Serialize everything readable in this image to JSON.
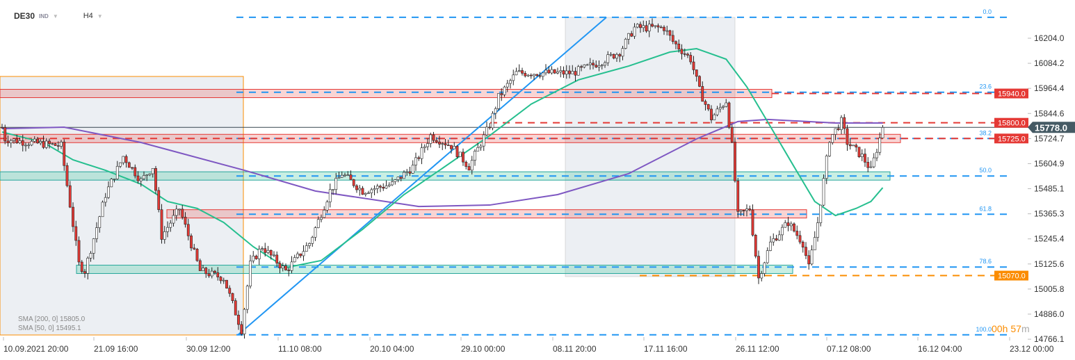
{
  "header": {
    "symbol": "DE30",
    "type": "IND",
    "timeframe": "H4"
  },
  "legend": [
    {
      "text": "SMA  [200,  0] 15805.0",
      "color": "#7e57c2"
    },
    {
      "text": "SMA  [50,  0] 15495.1",
      "color": "#26bf8f"
    }
  ],
  "timer": {
    "hours": "00h",
    "minutes": "57",
    "unit": "m"
  },
  "chart_data": {
    "type": "candlestick",
    "symbol": "DE30",
    "timeframe": "H4",
    "ylim": [
      14766.1,
      16204.0
    ],
    "y_ticks": [
      "16204.0",
      "16084.2",
      "15964.4",
      "15844.6",
      "15724.7",
      "15604.9",
      "15485.1",
      "15365.3",
      "15245.4",
      "15125.6",
      "15005.8",
      "14886.0",
      "14766.1"
    ],
    "x_ticks": [
      "10.09.2021  20:00",
      "21.09  16:00",
      "30.09  12:00",
      "11.10  08:00",
      "20.10  04:00",
      "29.10  00:00",
      "08.11  20:00",
      "17.11  16:00",
      "26.11  12:00",
      "07.12  08:00",
      "16.12  04:00",
      "23.12  00:00"
    ],
    "last_price": "15778.0",
    "price_path": [
      [
        1,
        15723
      ],
      [
        9,
        15706
      ],
      [
        20,
        15690
      ],
      [
        26,
        15125
      ],
      [
        28,
        15092
      ],
      [
        35,
        15457
      ],
      [
        41,
        15640
      ],
      [
        47,
        15523
      ],
      [
        51,
        15590
      ],
      [
        54,
        15258
      ],
      [
        60,
        15390
      ],
      [
        67,
        15092
      ],
      [
        75,
        15058
      ],
      [
        81,
        14810
      ],
      [
        84,
        15125
      ],
      [
        88,
        15208
      ],
      [
        96,
        15092
      ],
      [
        104,
        15225
      ],
      [
        111,
        15474
      ],
      [
        115,
        15557
      ],
      [
        122,
        15474
      ],
      [
        132,
        15507
      ],
      [
        139,
        15590
      ],
      [
        145,
        15739
      ],
      [
        152,
        15690
      ],
      [
        158,
        15590
      ],
      [
        165,
        15789
      ],
      [
        168,
        15922
      ],
      [
        174,
        16038
      ],
      [
        184,
        16038
      ],
      [
        193,
        16038
      ],
      [
        202,
        16088
      ],
      [
        209,
        16138
      ],
      [
        214,
        16254
      ],
      [
        224,
        16254
      ],
      [
        227,
        16188
      ],
      [
        233,
        16104
      ],
      [
        236,
        15955
      ],
      [
        240,
        15822
      ],
      [
        245,
        15905
      ],
      [
        247,
        15690
      ],
      [
        249,
        15357
      ],
      [
        253,
        15390
      ],
      [
        256,
        15058
      ],
      [
        260,
        15225
      ],
      [
        266,
        15324
      ],
      [
        271,
        15225
      ],
      [
        273,
        15108
      ],
      [
        276,
        15324
      ],
      [
        280,
        15723
      ],
      [
        284,
        15806
      ],
      [
        286,
        15706
      ],
      [
        291,
        15640
      ],
      [
        294,
        15573
      ],
      [
        296,
        15673
      ],
      [
        298,
        15778
      ]
    ],
    "sma200": [
      [
        0,
        15772
      ],
      [
        21,
        15779
      ],
      [
        47,
        15706
      ],
      [
        82,
        15573
      ],
      [
        106,
        15474
      ],
      [
        141,
        15400
      ],
      [
        165,
        15407
      ],
      [
        188,
        15457
      ],
      [
        212,
        15557
      ],
      [
        235,
        15723
      ],
      [
        249,
        15806
      ],
      [
        259,
        15816
      ],
      [
        282,
        15799
      ],
      [
        298,
        15799
      ]
    ],
    "sma50": [
      [
        0,
        15756
      ],
      [
        14,
        15706
      ],
      [
        24,
        15623
      ],
      [
        35,
        15573
      ],
      [
        47,
        15507
      ],
      [
        56,
        15424
      ],
      [
        66,
        15391
      ],
      [
        75,
        15324
      ],
      [
        85,
        15208
      ],
      [
        96,
        15108
      ],
      [
        108,
        15142
      ],
      [
        122,
        15291
      ],
      [
        136,
        15457
      ],
      [
        148,
        15573
      ],
      [
        165,
        15739
      ],
      [
        179,
        15889
      ],
      [
        195,
        16005
      ],
      [
        212,
        16071
      ],
      [
        226,
        16138
      ],
      [
        235,
        16154
      ],
      [
        245,
        16104
      ],
      [
        252,
        15972
      ],
      [
        259,
        15806
      ],
      [
        268,
        15590
      ],
      [
        275,
        15424
      ],
      [
        282,
        15357
      ],
      [
        289,
        15391
      ],
      [
        294,
        15424
      ],
      [
        298,
        15490
      ]
    ],
    "fibonacci": [
      {
        "level": "0.0",
        "price": 16304
      },
      {
        "level": "23.6",
        "price": 15946
      },
      {
        "level": "38.2",
        "price": 15725
      },
      {
        "level": "50.0",
        "price": 15546
      },
      {
        "level": "61.8",
        "price": 15363
      },
      {
        "level": "78.6",
        "price": 15111
      },
      {
        "level": "100.0",
        "price": 14787
      }
    ],
    "levels": [
      {
        "label": "15940.0",
        "price": 15940,
        "color": "#e53935"
      },
      {
        "label": "15800.0",
        "price": 15800,
        "color": "#e53935"
      },
      {
        "label": "15725.0",
        "price": 15725,
        "color": "#e53935"
      },
      {
        "label": "15070.0",
        "price": 15070,
        "color": "#fb8c00"
      }
    ],
    "colors": {
      "up": "#26a69a",
      "down": "#e53935",
      "fib": "#2196f3",
      "last": "#455a64"
    }
  }
}
